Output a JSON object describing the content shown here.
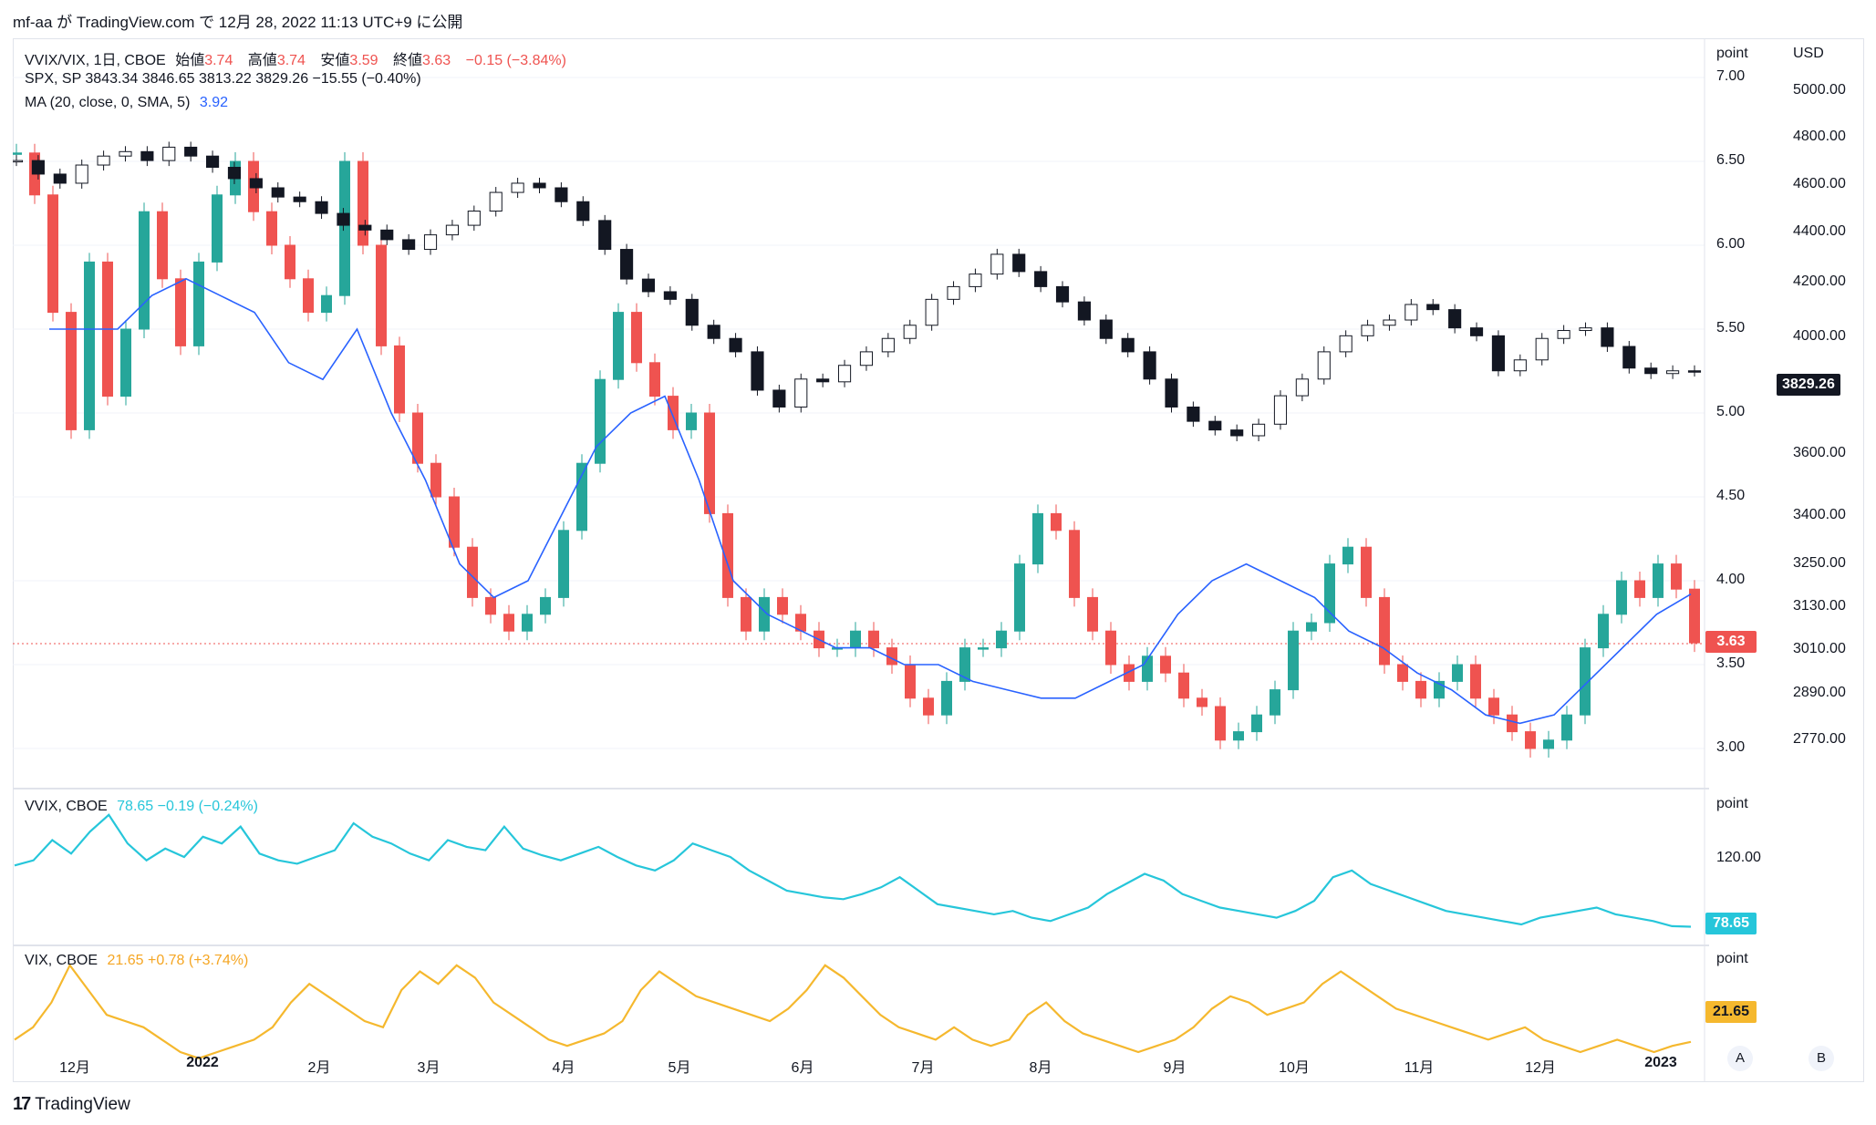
{
  "header": {
    "text": "mf-aa が TradingView.com で 12月 28, 2022 11:13 UTC+9 に公開"
  },
  "main_legend": {
    "line1_symbol": "VVIX/VIX, 1日, CBOE",
    "open_label": "始値",
    "open": "3.74",
    "high_label": "高値",
    "high": "3.74",
    "low_label": "安値",
    "low": "3.59",
    "close_label": "終値",
    "close": "3.63",
    "change": "−0.15 (−3.84%)",
    "line2": "SPX, SP  3843.34  3846.65  3813.22  3829.26  −15.55 (−0.40%)",
    "line3_label": "MA (20, close, 0, SMA, 5)",
    "line3_value": "3.92"
  },
  "vvix_legend": {
    "label": "VVIX, CBOE",
    "value": "78.65  −0.19 (−0.24%)"
  },
  "vix_legend": {
    "label": "VIX, CBOE",
    "value": "21.65  +0.78 (+3.74%)"
  },
  "axes": {
    "point_title": "point",
    "usd_title": "USD",
    "ratio_ticks": [
      "7.00",
      "6.50",
      "6.00",
      "5.50",
      "5.00",
      "4.50",
      "4.00",
      "3.50",
      "3.00"
    ],
    "usd_ticks": [
      "5000.00",
      "4800.00",
      "4600.00",
      "4400.00",
      "4200.00",
      "4000.00",
      "3600.00",
      "3400.00",
      "3250.00",
      "3130.00",
      "3010.00",
      "2890.00",
      "2770.00"
    ],
    "vvix_title": "point",
    "vvix_tick": "120.00",
    "vix_title": "point"
  },
  "badges": {
    "spx": "3829.26",
    "ratio": "3.63",
    "vvix": "78.65",
    "vix": "21.65"
  },
  "months": [
    "12月",
    "2022",
    "2月",
    "3月",
    "4月",
    "5月",
    "6月",
    "7月",
    "8月",
    "9月",
    "10月",
    "11月",
    "12月",
    "2023"
  ],
  "buttons": {
    "a": "A",
    "b": "B"
  },
  "footer": {
    "brand": "TradingView"
  },
  "colors": {
    "up": "#26a69a",
    "down": "#ef5350",
    "spx": "#131722",
    "ma": "#2962ff",
    "vvix": "#26c6da",
    "vix": "#f5b82e"
  },
  "chart_data": {
    "type": "candlestick",
    "x_range": [
      "2021-11-25",
      "2022-12-27"
    ],
    "series": [
      {
        "name": "VVIX/VIX, 1日, CBOE",
        "kind": "candles-close",
        "y_axis": "point",
        "closes": [
          6.55,
          6.3,
          5.6,
          4.9,
          5.9,
          5.1,
          5.5,
          6.2,
          5.8,
          5.4,
          5.9,
          6.3,
          6.5,
          6.2,
          6.0,
          5.8,
          5.6,
          5.7,
          6.5,
          6.0,
          5.4,
          5.0,
          4.7,
          4.5,
          4.2,
          3.9,
          3.8,
          3.7,
          3.8,
          3.9,
          4.3,
          4.7,
          5.2,
          5.6,
          5.3,
          5.1,
          4.9,
          5.0,
          4.4,
          3.9,
          3.7,
          3.9,
          3.8,
          3.7,
          3.6,
          3.6,
          3.7,
          3.6,
          3.5,
          3.3,
          3.2,
          3.4,
          3.6,
          3.6,
          3.7,
          4.1,
          4.4,
          4.3,
          3.9,
          3.7,
          3.5,
          3.4,
          3.55,
          3.45,
          3.3,
          3.25,
          3.05,
          3.1,
          3.2,
          3.35,
          3.7,
          3.75,
          4.1,
          4.2,
          3.9,
          3.5,
          3.4,
          3.3,
          3.4,
          3.5,
          3.3,
          3.2,
          3.1,
          3.0,
          3.05,
          3.2,
          3.6,
          3.8,
          4.0,
          3.9,
          4.1,
          3.95,
          3.63
        ],
        "ma_20": [
          5.5,
          5.5,
          5.5,
          5.7,
          5.8,
          5.7,
          5.6,
          5.3,
          5.2,
          5.5,
          5.0,
          4.6,
          4.1,
          3.9,
          4.0,
          4.4,
          4.8,
          5.0,
          5.1,
          4.6,
          4.0,
          3.8,
          3.7,
          3.6,
          3.6,
          3.5,
          3.5,
          3.4,
          3.35,
          3.3,
          3.3,
          3.4,
          3.5,
          3.8,
          4.0,
          4.1,
          4.0,
          3.9,
          3.7,
          3.6,
          3.45,
          3.35,
          3.2,
          3.15,
          3.2,
          3.4,
          3.6,
          3.8,
          3.92
        ]
      },
      {
        "name": "SPX, SP",
        "kind": "candles-close",
        "y_axis": "USD",
        "closes": [
          4680,
          4620,
          4580,
          4660,
          4700,
          4720,
          4680,
          4740,
          4700,
          4650,
          4600,
          4560,
          4520,
          4500,
          4450,
          4400,
          4380,
          4340,
          4300,
          4360,
          4400,
          4460,
          4540,
          4580,
          4560,
          4500,
          4420,
          4300,
          4180,
          4130,
          4100,
          4000,
          3950,
          3900,
          3760,
          3700,
          3800,
          3790,
          3850,
          3900,
          3950,
          4000,
          4100,
          4150,
          4200,
          4280,
          4210,
          4150,
          4090,
          4020,
          3950,
          3900,
          3800,
          3700,
          3650,
          3620,
          3600,
          3640,
          3740,
          3800,
          3900,
          3960,
          4000,
          4020,
          4080,
          4060,
          3990,
          3960,
          3830,
          3870,
          3950,
          3980,
          3990,
          3920,
          3840,
          3820,
          3830,
          3829
        ]
      }
    ],
    "subpanels": [
      {
        "name": "VVIX, CBOE",
        "y_axis": "point",
        "tick": 120,
        "values": [
          115,
          118,
          130,
          122,
          135,
          145,
          128,
          118,
          125,
          120,
          132,
          128,
          138,
          122,
          118,
          116,
          120,
          124,
          140,
          132,
          128,
          122,
          118,
          130,
          126,
          124,
          138,
          125,
          121,
          118,
          122,
          126,
          120,
          115,
          112,
          118,
          128,
          124,
          120,
          112,
          106,
          100,
          98,
          96,
          95,
          98,
          102,
          108,
          100,
          92,
          90,
          88,
          86,
          88,
          84,
          82,
          86,
          90,
          98,
          104,
          110,
          106,
          98,
          94,
          90,
          88,
          86,
          84,
          88,
          94,
          108,
          112,
          104,
          100,
          96,
          92,
          88,
          86,
          84,
          82,
          80,
          84,
          86,
          88,
          90,
          86,
          84,
          82,
          79,
          78.65
        ]
      },
      {
        "name": "VIX, CBOE",
        "y_axis": "point",
        "values": [
          22,
          24,
          28,
          34,
          30,
          26,
          25,
          24,
          22,
          20,
          19,
          20,
          21,
          22,
          24,
          28,
          31,
          29,
          27,
          25,
          24,
          30,
          33,
          31,
          34,
          32,
          28,
          26,
          24,
          22,
          21,
          22,
          23,
          25,
          30,
          33,
          31,
          29,
          28,
          27,
          26,
          25,
          27,
          30,
          34,
          32,
          29,
          26,
          24,
          23,
          22,
          24,
          22,
          21,
          22,
          26,
          28,
          25,
          23,
          22,
          21,
          20,
          21,
          22,
          24,
          27,
          29,
          28,
          26,
          27,
          28,
          31,
          33,
          31,
          29,
          27,
          26,
          25,
          24,
          23,
          22,
          23,
          24,
          22,
          21,
          20,
          21,
          22,
          21,
          20,
          21,
          21.65
        ]
      }
    ]
  }
}
